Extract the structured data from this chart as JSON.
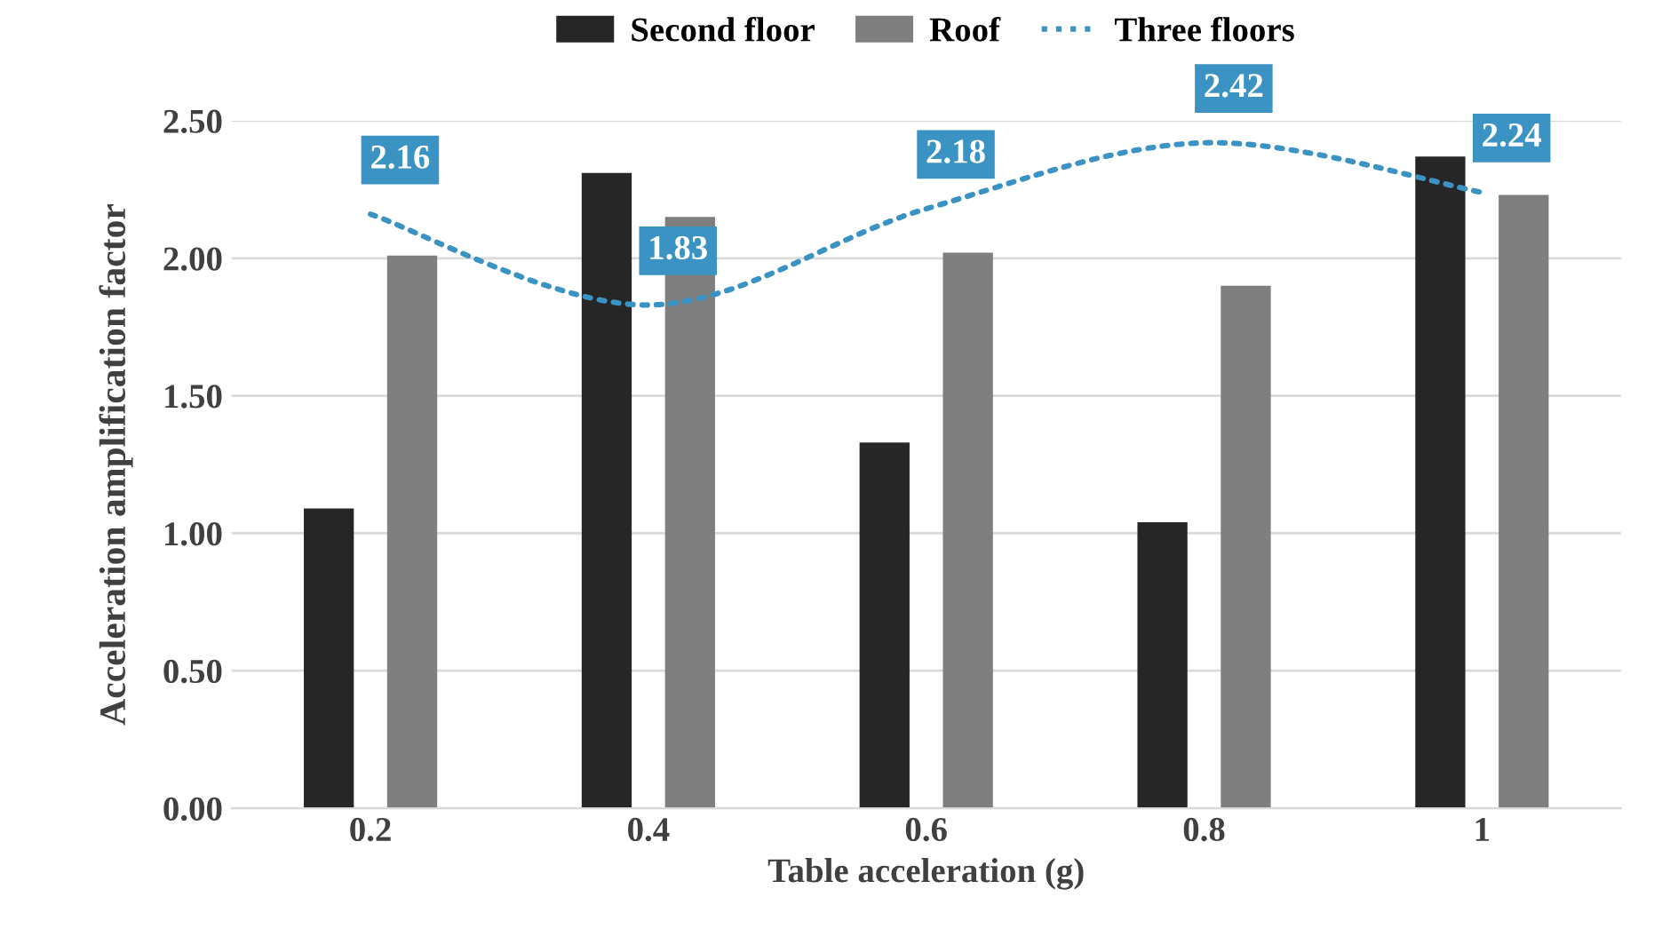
{
  "chart_data": {
    "type": "bar",
    "xlabel": "Table acceleration (g)",
    "ylabel": "Acceleration amplification factor",
    "categories": [
      "0.2",
      "0.4",
      "0.6",
      "0.8",
      "1"
    ],
    "series": [
      {
        "name": "Second floor",
        "color": "#262626",
        "values": [
          1.09,
          2.31,
          1.33,
          1.04,
          2.37
        ]
      },
      {
        "name": "Roof",
        "color": "#7f7f7f",
        "values": [
          2.01,
          2.15,
          2.02,
          1.9,
          2.23
        ]
      },
      {
        "name": "Three floors",
        "type": "line",
        "color": "#3a93c3",
        "line_style": "dotted",
        "values": [
          2.16,
          1.83,
          2.18,
          2.42,
          2.24
        ],
        "value_labels": [
          "2.16",
          "1.83",
          "2.18",
          "2.42",
          "2.24"
        ]
      }
    ],
    "ylim": [
      0,
      2.5
    ],
    "yticks": [
      "0.00",
      "0.50",
      "1.00",
      "1.50",
      "2.00",
      "2.50"
    ],
    "grid": "y",
    "legend": "top"
  }
}
